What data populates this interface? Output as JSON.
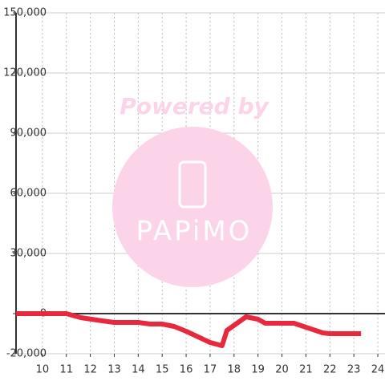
{
  "chart_data": {
    "type": "line",
    "annotations": [
      "Powered by",
      "PAPiMO"
    ],
    "x": [
      8.9,
      11,
      11.6,
      12.5,
      13,
      14,
      14.5,
      15,
      15.5,
      16,
      16.5,
      17,
      17.5,
      17.7,
      18.5,
      19,
      19.3,
      20,
      20.5,
      21,
      21.7,
      22,
      23.3
    ],
    "series": [
      {
        "color": "#e8283c",
        "values": [
          0,
          0,
          -2000,
          -3600,
          -4400,
          -4400,
          -5200,
          -5200,
          -6400,
          -8800,
          -11600,
          -14400,
          -16000,
          -8400,
          -1600,
          -2800,
          -4800,
          -4800,
          -4800,
          -6800,
          -9600,
          -10000,
          -10000
        ]
      }
    ],
    "xlim": [
      8.9,
      24.3
    ],
    "xticks": [
      10,
      11,
      12,
      13,
      14,
      15,
      16,
      17,
      18,
      19,
      20,
      21,
      22,
      23,
      24
    ],
    "ylim": [
      -20000,
      150000
    ],
    "yticks": [
      {
        "value": -20000,
        "label": "-20,000"
      },
      0,
      {
        "value": 30000,
        "label": "30,000"
      },
      {
        "value": 60000,
        "label": "60,000"
      },
      {
        "value": 90000,
        "label": "90,000"
      },
      {
        "value": 120000,
        "label": "120,000"
      },
      {
        "value": 150000,
        "label": "150,000"
      }
    ],
    "grid": true
  }
}
